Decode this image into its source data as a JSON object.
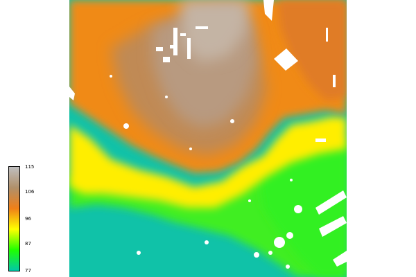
{
  "colormap": {
    "stops": [
      "#bfbfbf",
      "#b0906a",
      "#f08018",
      "#ffff00",
      "#20ff00",
      "#00c8a8"
    ],
    "nodata_color": "#ffffff"
  },
  "legend": {
    "labels": [
      {
        "value": "115",
        "fraction": 1.0
      },
      {
        "value": "106",
        "fraction": 0.7632
      },
      {
        "value": "96",
        "fraction": 0.5
      },
      {
        "value": "87",
        "fraction": 0.2632
      },
      {
        "value": "77",
        "fraction": 0.0
      }
    ],
    "min": 77,
    "max": 115
  }
}
